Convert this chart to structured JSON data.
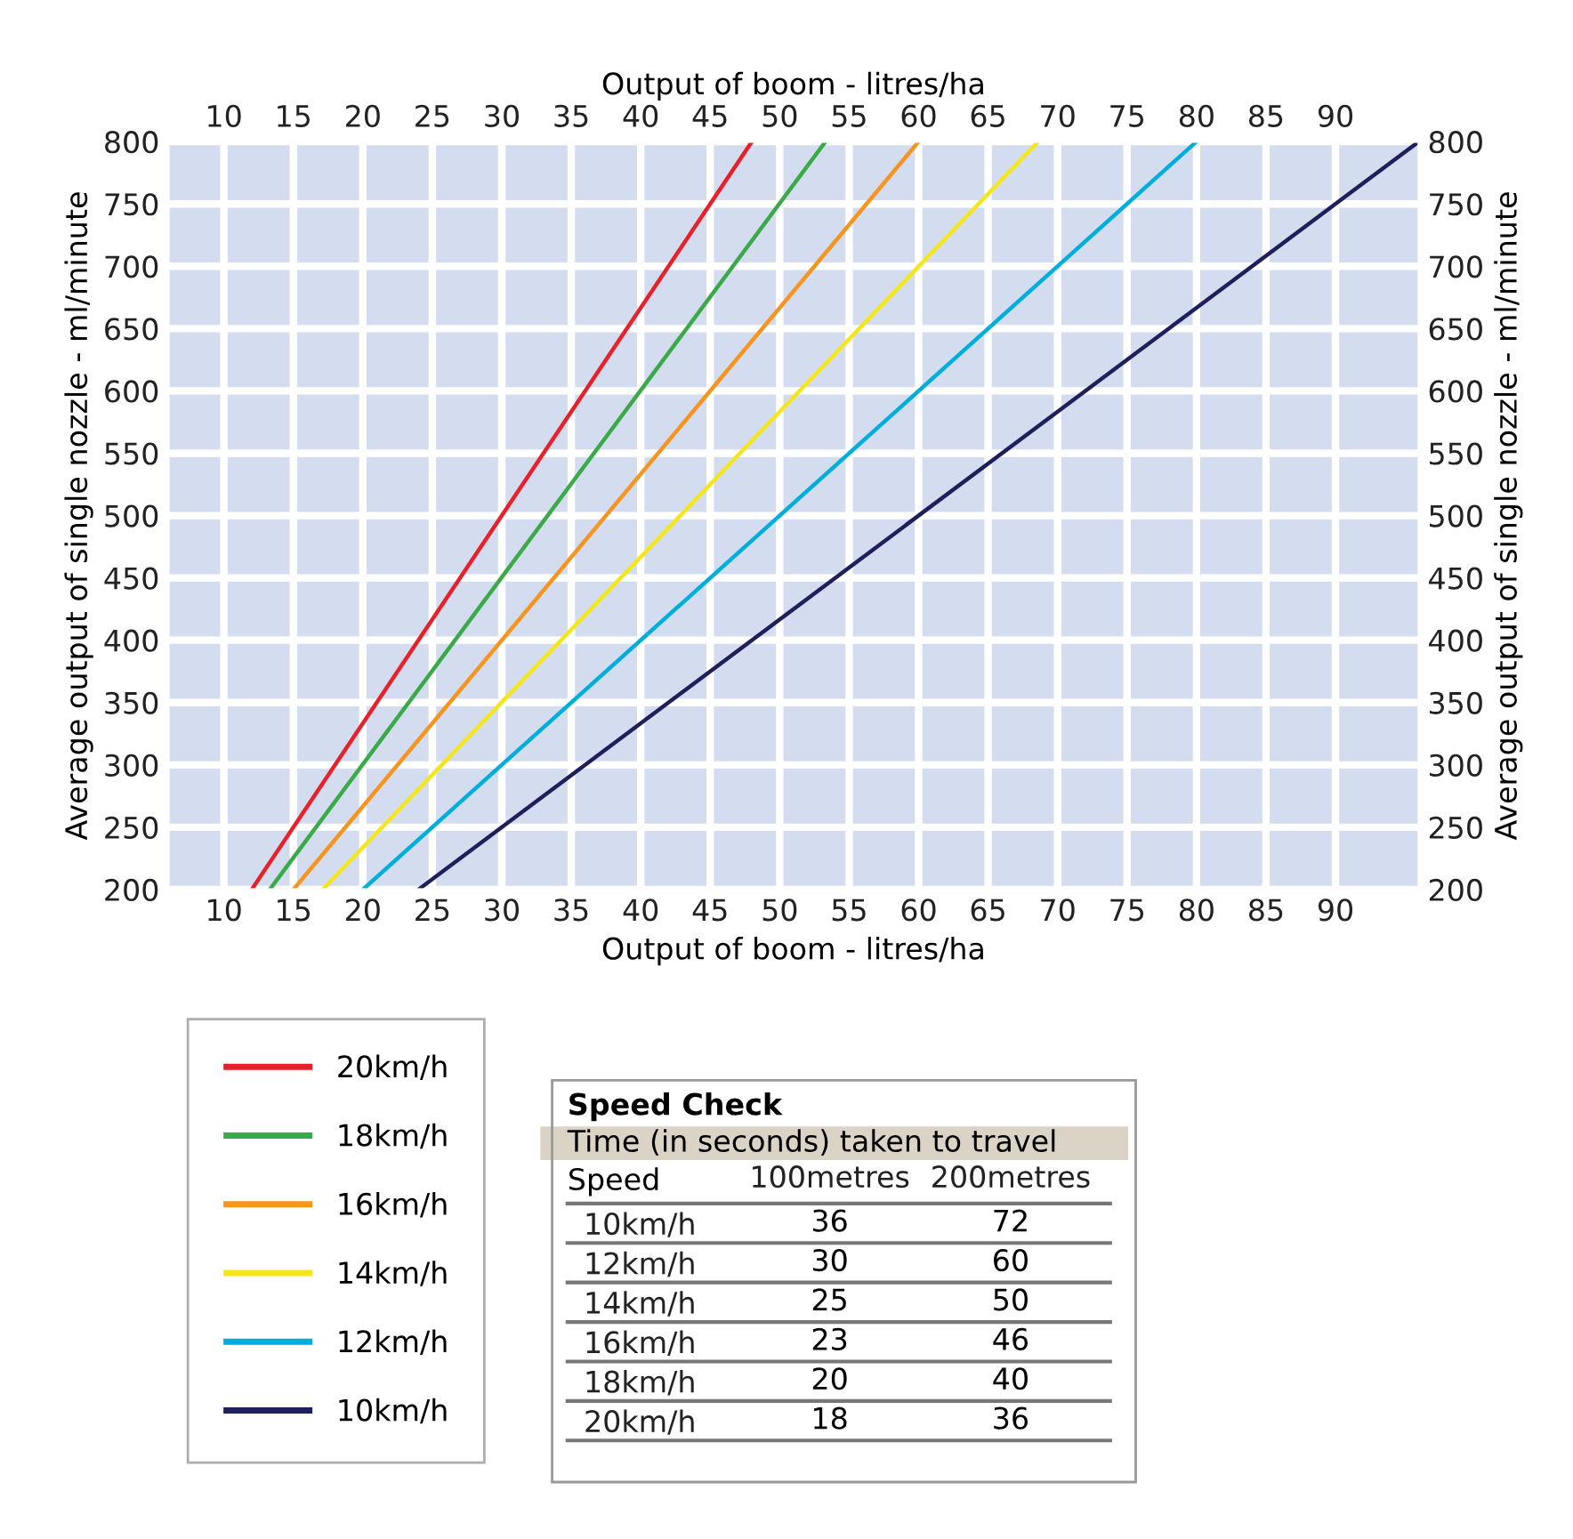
{
  "chart_data": [
    {
      "type": "line",
      "xlabel": "Output of boom - litres/ha",
      "x2label": "Output of boom - litres/ha",
      "ylabel": "Average output of single nozzle - ml/minute",
      "y2label": "Average output of single nozzle - ml/minute",
      "xlim": [
        6,
        96
      ],
      "xticks": [
        10,
        15,
        20,
        25,
        30,
        35,
        40,
        45,
        50,
        55,
        60,
        65,
        70,
        75,
        80,
        85,
        90
      ],
      "x2lim": [
        6,
        96
      ],
      "x2ticks": [
        10,
        15,
        20,
        25,
        30,
        35,
        40,
        45,
        50,
        55,
        60,
        65,
        70,
        75,
        80,
        85,
        90
      ],
      "ylim": [
        200,
        800
      ],
      "yticks": [
        200,
        250,
        300,
        350,
        400,
        450,
        500,
        550,
        600,
        650,
        700,
        750,
        800
      ],
      "y2lim": [
        200,
        800
      ],
      "y2ticks": [
        200,
        250,
        300,
        350,
        400,
        450,
        500,
        550,
        600,
        650,
        700,
        750,
        800
      ],
      "grid": true,
      "legend": "bottom left",
      "marker": "none",
      "line_style": "solid",
      "series": [
        {
          "name": "20km/h",
          "color": "#e8202a",
          "x": [
            12,
            48
          ],
          "values": [
            200,
            800
          ]
        },
        {
          "name": "18km/h",
          "color": "#3aaa48",
          "x": [
            13.3,
            53.3
          ],
          "values": [
            200,
            800
          ]
        },
        {
          "name": "16km/h",
          "color": "#f7941d",
          "x": [
            15,
            60
          ],
          "values": [
            200,
            800
          ]
        },
        {
          "name": "14km/h",
          "color": "#f5e61a",
          "x": [
            17.1,
            68.6
          ],
          "values": [
            200,
            800
          ]
        },
        {
          "name": "12km/h",
          "color": "#00aedb",
          "x": [
            20,
            80
          ],
          "values": [
            200,
            800
          ]
        },
        {
          "name": "10km/h",
          "color": "#1f1f5c",
          "x": [
            24,
            96
          ],
          "values": [
            200,
            800
          ]
        }
      ]
    },
    {
      "type": "heatmap",
      "data_labels": true,
      "title": "Speed Check",
      "subtitle": "Time (in seconds) taken to travel",
      "ylabel": "Speed",
      "categories": [
        "100metres",
        "200metres"
      ],
      "y_categories": [
        "10km/h",
        "12km/h",
        "14km/h",
        "16km/h",
        "18km/h",
        "20km/h"
      ],
      "cells": [
        [
          36,
          72
        ],
        [
          30,
          60
        ],
        [
          25,
          50
        ],
        [
          23,
          46
        ],
        [
          20,
          40
        ],
        [
          18,
          36
        ]
      ]
    }
  ]
}
